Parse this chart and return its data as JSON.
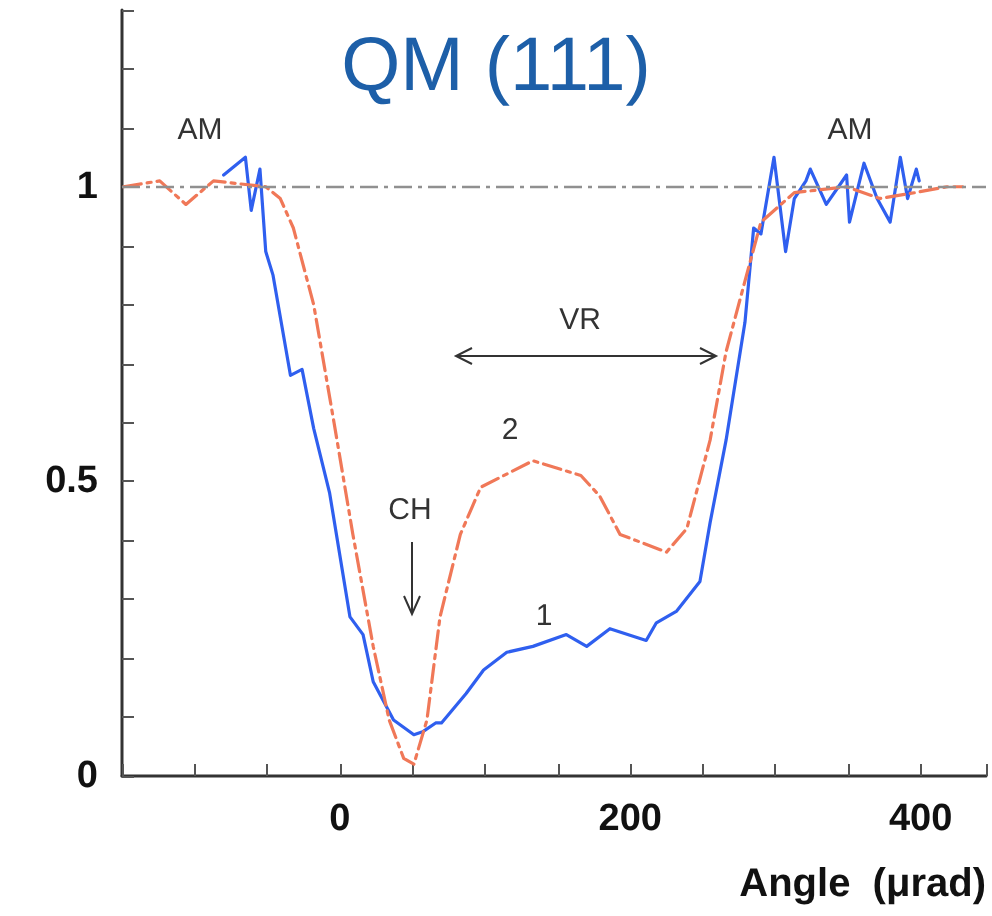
{
  "chart_data": {
    "type": "line",
    "title": "QM (111)",
    "xlabel": "Angle  (μrad)",
    "xlim": [
      -150,
      445
    ],
    "xticks": [
      {
        "value": -150,
        "label": null
      },
      {
        "value": -100,
        "label": null
      },
      {
        "value": -50,
        "label": null
      },
      0,
      {
        "value": 50,
        "label": null
      },
      {
        "value": 100,
        "label": null
      },
      {
        "value": 150,
        "label": null
      },
      200,
      {
        "value": 250,
        "label": null
      },
      {
        "value": 300,
        "label": null
      },
      {
        "value": 350,
        "label": null
      },
      400
    ],
    "ylim": [
      0,
      1.3
    ],
    "yticks": [
      0,
      {
        "value": 0.1,
        "label": null
      },
      {
        "value": 0.2,
        "label": null
      },
      {
        "value": 0.3,
        "label": null
      },
      {
        "value": 0.4,
        "label": null
      },
      0.5,
      {
        "value": 0.6,
        "label": null
      },
      {
        "value": 0.7,
        "label": null
      },
      {
        "value": 0.8,
        "label": null
      },
      {
        "value": 0.9,
        "label": null
      },
      1,
      {
        "value": 1.1,
        "label": null
      },
      {
        "value": 1.2,
        "label": null
      }
    ],
    "grid": false,
    "marker": "none",
    "series": [
      {
        "color": "#2f5fef",
        "line_style": "solid",
        "x": [
          -80,
          -65,
          -61,
          -55,
          -51,
          -46,
          -34,
          -26,
          -18,
          -7,
          7,
          16,
          23,
          37,
          51,
          57,
          66,
          70,
          87,
          99,
          115,
          133,
          156,
          170,
          186,
          211,
          218,
          232,
          248,
          255,
          266,
          279,
          285,
          290,
          299,
          307,
          313,
          321,
          324,
          335,
          349,
          351,
          361,
          370,
          379,
          386,
          391,
          397,
          399
        ],
        "values": [
          1.02,
          1.05,
          0.96,
          1.03,
          0.89,
          0.85,
          0.68,
          0.69,
          0.59,
          0.48,
          0.27,
          0.24,
          0.16,
          0.095,
          0.07,
          0.075,
          0.09,
          0.09,
          0.14,
          0.18,
          0.21,
          0.22,
          0.24,
          0.22,
          0.25,
          0.23,
          0.26,
          0.28,
          0.33,
          0.43,
          0.57,
          0.77,
          0.93,
          0.92,
          1.05,
          0.89,
          0.98,
          1.01,
          1.03,
          0.97,
          1.02,
          0.94,
          1.04,
          0.98,
          0.94,
          1.05,
          0.98,
          1.03,
          1.01
        ]
      },
      {
        "color": "#f07858",
        "line_style": "dashed",
        "x": [
          -149,
          -124,
          -106,
          -87,
          -51,
          -41,
          -32,
          -18,
          -4,
          9,
          23,
          34,
          44,
          51,
          60,
          69,
          83,
          97,
          133,
          166,
          179,
          193,
          225,
          239,
          255,
          266,
          279,
          290,
          313,
          349,
          372,
          396,
          418,
          429
        ],
        "values": [
          1.0,
          1.01,
          0.97,
          1.01,
          1.0,
          0.98,
          0.93,
          0.8,
          0.6,
          0.41,
          0.22,
          0.095,
          0.03,
          0.02,
          0.095,
          0.27,
          0.41,
          0.49,
          0.535,
          0.51,
          0.475,
          0.41,
          0.38,
          0.42,
          0.57,
          0.72,
          0.84,
          0.94,
          0.99,
          1.0,
          0.98,
          0.99,
          1.0,
          1.0
        ]
      }
    ],
    "ref_lines": [
      {
        "axis": "y",
        "value": 1,
        "color": "#909090",
        "line_style": "dashed"
      }
    ],
    "annotations": [
      "AM",
      "AM",
      "VR",
      "CH",
      "2",
      "1"
    ]
  }
}
